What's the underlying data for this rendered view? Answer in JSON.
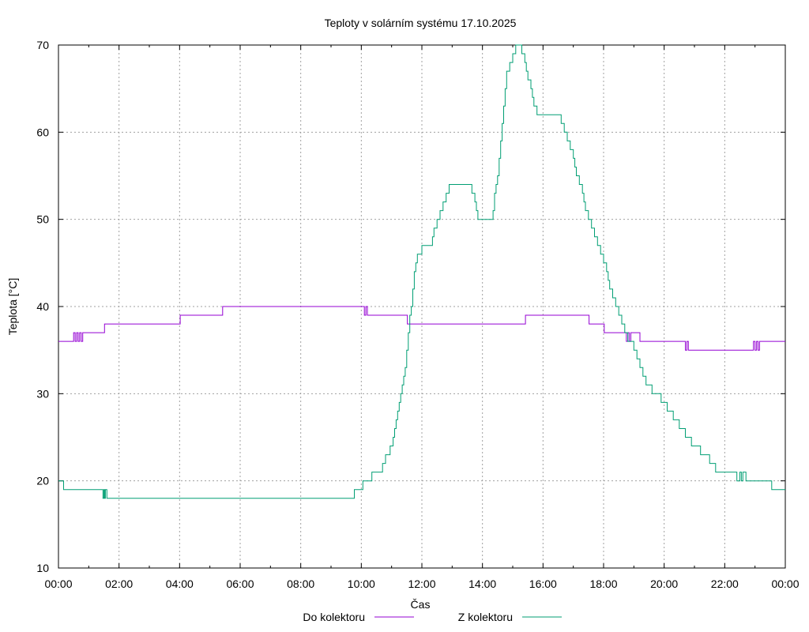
{
  "chart_data": {
    "type": "line",
    "title": "Teploty v solárním systému 17.10.2025",
    "xlabel": "Čas",
    "ylabel": "Teplota [°C]",
    "xlim": [
      0,
      24
    ],
    "ylim": [
      10,
      70
    ],
    "grid": true,
    "legend_position": "bottom",
    "x_ticks": [
      0,
      2,
      4,
      6,
      8,
      10,
      12,
      14,
      16,
      18,
      20,
      22,
      24
    ],
    "x_tick_labels": [
      "00:00",
      "02:00",
      "04:00",
      "06:00",
      "08:00",
      "10:00",
      "12:00",
      "14:00",
      "16:00",
      "18:00",
      "20:00",
      "22:00",
      "00:00"
    ],
    "y_ticks": [
      10,
      20,
      30,
      40,
      50,
      60,
      70
    ],
    "y_tick_labels": [
      "10",
      "20",
      "30",
      "40",
      "50",
      "60",
      "70"
    ],
    "series": [
      {
        "name": "Do kolektoru",
        "color": "#9400d3",
        "points": [
          [
            0,
            36
          ],
          [
            0.48,
            36
          ],
          [
            0.5,
            37
          ],
          [
            0.55,
            36
          ],
          [
            0.6,
            37
          ],
          [
            0.65,
            36
          ],
          [
            0.7,
            37
          ],
          [
            0.75,
            36
          ],
          [
            0.8,
            37
          ],
          [
            1.5,
            37
          ],
          [
            1.52,
            38
          ],
          [
            4.0,
            38
          ],
          [
            4.02,
            39
          ],
          [
            5.4,
            39
          ],
          [
            5.42,
            40
          ],
          [
            10.05,
            40
          ],
          [
            10.1,
            39
          ],
          [
            10.15,
            40
          ],
          [
            10.2,
            39
          ],
          [
            11.5,
            39
          ],
          [
            11.52,
            38
          ],
          [
            15.4,
            38
          ],
          [
            15.42,
            39
          ],
          [
            17.5,
            39
          ],
          [
            17.52,
            38
          ],
          [
            18.0,
            38
          ],
          [
            18.02,
            37
          ],
          [
            18.7,
            37
          ],
          [
            18.75,
            36
          ],
          [
            18.8,
            37
          ],
          [
            18.85,
            36
          ],
          [
            18.9,
            37
          ],
          [
            19.0,
            37
          ],
          [
            19.2,
            36
          ],
          [
            20.65,
            36
          ],
          [
            20.7,
            35
          ],
          [
            20.75,
            36
          ],
          [
            20.8,
            35
          ],
          [
            22.9,
            35
          ],
          [
            22.95,
            36
          ],
          [
            23.0,
            35
          ],
          [
            23.05,
            36
          ],
          [
            23.1,
            35
          ],
          [
            23.15,
            36
          ],
          [
            24,
            36
          ]
        ]
      },
      {
        "name": "Z kolektoru",
        "color": "#009e73",
        "points": [
          [
            0,
            20
          ],
          [
            0.15,
            20
          ],
          [
            0.17,
            19
          ],
          [
            1.45,
            19
          ],
          [
            1.47,
            18
          ],
          [
            1.5,
            19
          ],
          [
            1.52,
            18
          ],
          [
            1.55,
            19
          ],
          [
            1.6,
            18
          ],
          [
            9.75,
            18
          ],
          [
            9.77,
            19
          ],
          [
            10.0,
            19
          ],
          [
            10.05,
            20
          ],
          [
            10.3,
            20
          ],
          [
            10.35,
            21
          ],
          [
            10.6,
            21
          ],
          [
            10.7,
            22
          ],
          [
            10.8,
            23
          ],
          [
            10.95,
            24
          ],
          [
            11.05,
            25
          ],
          [
            11.1,
            26
          ],
          [
            11.15,
            27
          ],
          [
            11.2,
            28
          ],
          [
            11.25,
            29
          ],
          [
            11.3,
            30
          ],
          [
            11.35,
            31
          ],
          [
            11.4,
            32
          ],
          [
            11.45,
            33
          ],
          [
            11.5,
            35
          ],
          [
            11.55,
            37
          ],
          [
            11.6,
            39
          ],
          [
            11.65,
            40
          ],
          [
            11.7,
            42
          ],
          [
            11.75,
            44
          ],
          [
            11.8,
            45
          ],
          [
            11.85,
            46
          ],
          [
            12.0,
            47
          ],
          [
            12.3,
            47
          ],
          [
            12.35,
            48
          ],
          [
            12.4,
            49
          ],
          [
            12.5,
            50
          ],
          [
            12.6,
            51
          ],
          [
            12.7,
            52
          ],
          [
            12.8,
            53
          ],
          [
            12.9,
            54
          ],
          [
            13.6,
            54
          ],
          [
            13.65,
            53
          ],
          [
            13.75,
            52
          ],
          [
            13.8,
            51
          ],
          [
            13.85,
            50
          ],
          [
            14.3,
            50
          ],
          [
            14.35,
            51
          ],
          [
            14.4,
            53
          ],
          [
            14.45,
            54
          ],
          [
            14.5,
            55
          ],
          [
            14.55,
            57
          ],
          [
            14.6,
            59
          ],
          [
            14.65,
            61
          ],
          [
            14.7,
            63
          ],
          [
            14.75,
            65
          ],
          [
            14.8,
            67
          ],
          [
            14.9,
            68
          ],
          [
            15.0,
            69
          ],
          [
            15.1,
            70
          ],
          [
            15.25,
            70
          ],
          [
            15.3,
            69
          ],
          [
            15.4,
            68
          ],
          [
            15.45,
            67
          ],
          [
            15.5,
            66
          ],
          [
            15.6,
            65
          ],
          [
            15.65,
            64
          ],
          [
            15.7,
            63
          ],
          [
            15.8,
            62
          ],
          [
            16.5,
            62
          ],
          [
            16.6,
            61
          ],
          [
            16.7,
            60
          ],
          [
            16.8,
            59
          ],
          [
            16.9,
            58
          ],
          [
            17.0,
            57
          ],
          [
            17.05,
            56
          ],
          [
            17.1,
            55
          ],
          [
            17.2,
            54
          ],
          [
            17.3,
            53
          ],
          [
            17.35,
            52
          ],
          [
            17.4,
            51
          ],
          [
            17.5,
            50
          ],
          [
            17.6,
            49
          ],
          [
            17.7,
            48
          ],
          [
            17.8,
            47
          ],
          [
            17.9,
            46
          ],
          [
            18.0,
            45
          ],
          [
            18.1,
            44
          ],
          [
            18.15,
            43
          ],
          [
            18.2,
            42
          ],
          [
            18.3,
            41
          ],
          [
            18.4,
            40
          ],
          [
            18.5,
            39
          ],
          [
            18.6,
            38
          ],
          [
            18.7,
            37
          ],
          [
            18.8,
            36
          ],
          [
            19.0,
            35
          ],
          [
            19.1,
            34
          ],
          [
            19.2,
            33
          ],
          [
            19.3,
            32
          ],
          [
            19.4,
            31
          ],
          [
            19.6,
            30
          ],
          [
            19.9,
            29
          ],
          [
            20.1,
            28
          ],
          [
            20.3,
            27
          ],
          [
            20.5,
            26
          ],
          [
            20.7,
            25
          ],
          [
            20.9,
            24
          ],
          [
            21.2,
            23
          ],
          [
            21.5,
            22
          ],
          [
            21.7,
            21
          ],
          [
            21.9,
            21
          ],
          [
            22.0,
            21
          ],
          [
            22.4,
            20
          ],
          [
            22.5,
            21
          ],
          [
            22.55,
            20
          ],
          [
            22.6,
            21
          ],
          [
            22.7,
            20
          ],
          [
            23.5,
            20
          ],
          [
            23.55,
            19
          ],
          [
            24,
            19
          ]
        ]
      }
    ]
  }
}
